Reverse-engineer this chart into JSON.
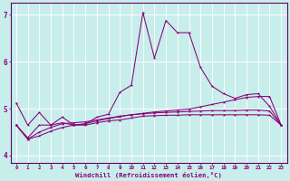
{
  "background_color": "#c8eeec",
  "line_color": "#880077",
  "grid_color": "#aaddda",
  "spine_color": "#660066",
  "xlabel_bg": "#550055",
  "x_values": [
    0,
    1,
    2,
    3,
    4,
    5,
    6,
    7,
    8,
    9,
    10,
    11,
    12,
    13,
    14,
    15,
    16,
    17,
    18,
    19,
    20,
    21,
    22,
    23
  ],
  "line1_y": [
    5.12,
    4.65,
    4.92,
    4.65,
    4.82,
    4.65,
    4.67,
    4.82,
    4.88,
    5.35,
    5.5,
    7.05,
    6.08,
    6.88,
    6.62,
    6.62,
    5.88,
    5.48,
    5.32,
    5.22,
    5.3,
    5.32,
    5.05,
    4.65
  ],
  "line2_y": [
    4.65,
    4.38,
    4.65,
    4.65,
    4.7,
    4.65,
    4.65,
    4.7,
    4.74,
    4.76,
    4.8,
    4.84,
    4.85,
    4.86,
    4.86,
    4.87,
    4.87,
    4.87,
    4.87,
    4.87,
    4.87,
    4.87,
    4.86,
    4.65
  ],
  "line3_y": [
    4.65,
    4.35,
    4.5,
    4.6,
    4.68,
    4.7,
    4.72,
    4.76,
    4.8,
    4.84,
    4.87,
    4.89,
    4.91,
    4.92,
    4.93,
    4.94,
    4.95,
    4.96,
    4.96,
    4.96,
    4.97,
    4.97,
    4.95,
    4.65
  ],
  "line4_y": [
    4.65,
    4.35,
    4.42,
    4.52,
    4.6,
    4.65,
    4.68,
    4.74,
    4.79,
    4.83,
    4.87,
    4.9,
    4.93,
    4.95,
    4.97,
    4.99,
    5.04,
    5.09,
    5.14,
    5.19,
    5.24,
    5.26,
    5.26,
    4.65
  ],
  "ylim": [
    3.85,
    7.25
  ],
  "xlim": [
    -0.5,
    23.5
  ],
  "yticks": [
    4,
    5,
    6,
    7
  ],
  "xticks": [
    0,
    1,
    2,
    3,
    4,
    5,
    6,
    7,
    8,
    9,
    10,
    11,
    12,
    13,
    14,
    15,
    16,
    17,
    18,
    19,
    20,
    21,
    22,
    23
  ],
  "xlabel": "Windchill (Refroidissement éolien,°C)"
}
